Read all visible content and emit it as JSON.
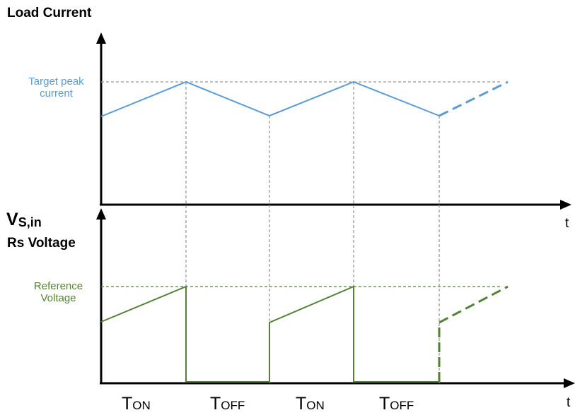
{
  "top_chart": {
    "title": "Load Current",
    "level_label_line1": "Target peak",
    "level_label_line2": "current",
    "x_label": "t",
    "color": "#5b9bd5"
  },
  "bottom_chart": {
    "title_main": "V",
    "title_sub": "S,in",
    "title_line2": "Rs Voltage",
    "level_label_line1": "Reference",
    "level_label_line2": "Voltage",
    "x_label": "t",
    "color": "#548235"
  },
  "phases": [
    {
      "big": "T",
      "small": "ON"
    },
    {
      "big": "T",
      "small": "OFF"
    },
    {
      "big": "T",
      "small": "ON"
    },
    {
      "big": "T",
      "small": "OFF"
    }
  ],
  "guide_color": "#999999"
}
